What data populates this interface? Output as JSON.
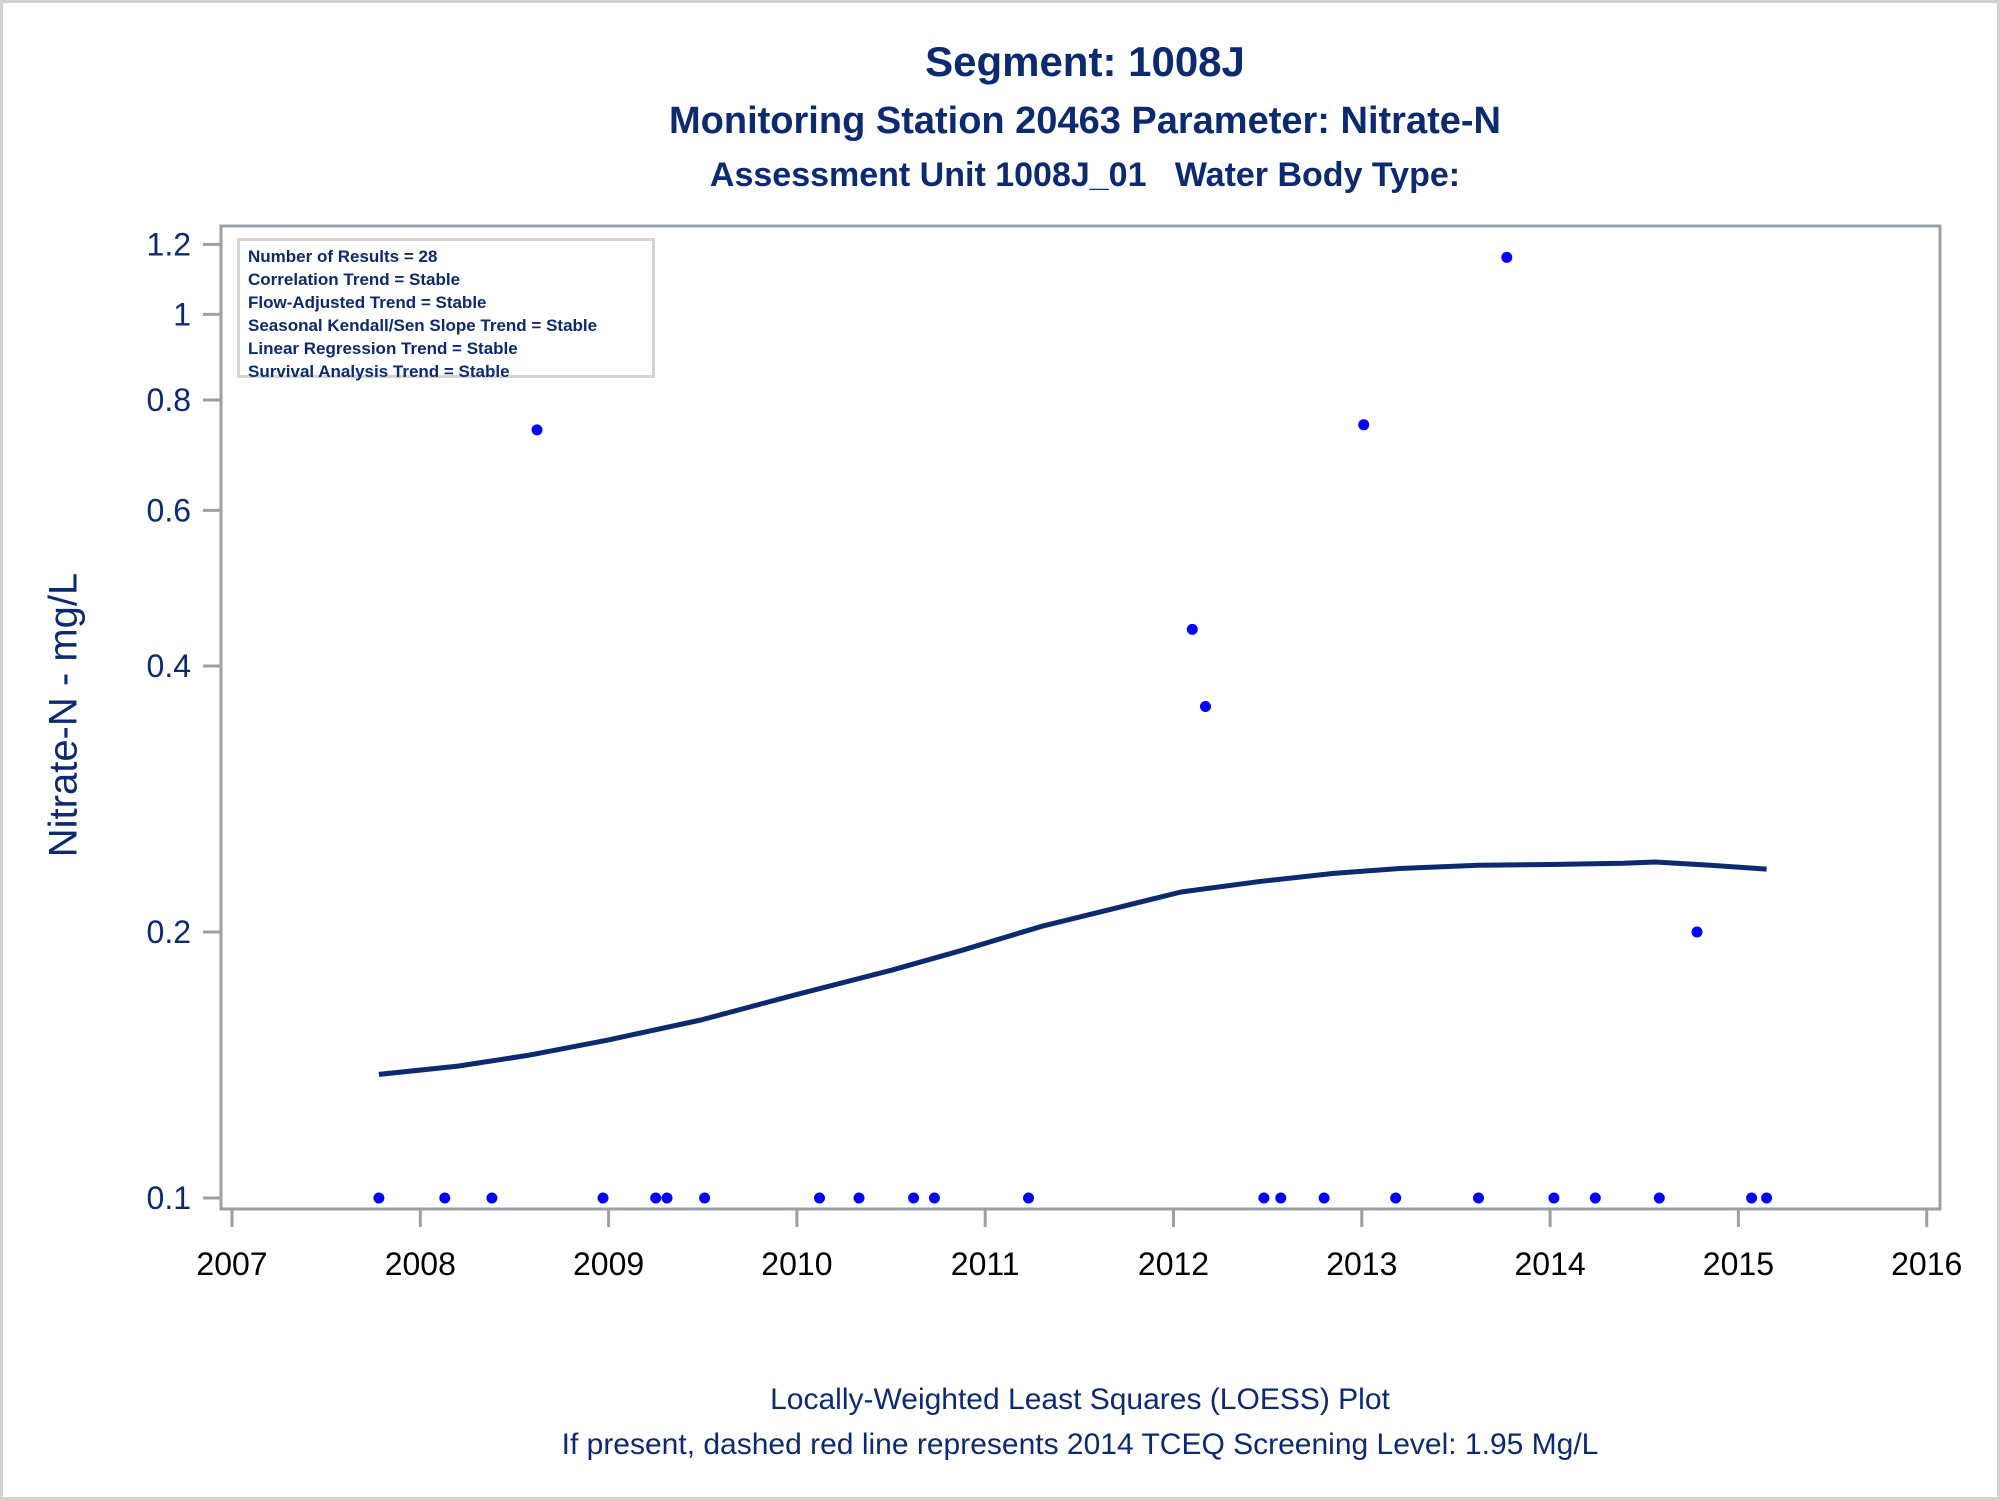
{
  "titles": {
    "main": "Segment: 1008J",
    "sub1": "Monitoring Station 20463 Parameter: Nitrate-N",
    "sub2": "Assessment Unit 1008J_01   Water Body Type:"
  },
  "stats_box": [
    "Number of Results = 28",
    "Correlation Trend = Stable",
    "Flow-Adjusted Trend = Stable",
    "Seasonal Kendall/Sen Slope Trend = Stable",
    "Linear Regression Trend = Stable",
    "Survival Analysis Trend = Stable"
  ],
  "footnotes": {
    "line1": "Locally-Weighted Least Squares (LOESS) Plot",
    "line2": "If present, dashed red line represents 2014 TCEQ Screening Level: 1.95 Mg/L"
  },
  "colors": {
    "text": "#0c2a70",
    "points": "#0000ff",
    "loess": "#0c2a70",
    "axis": "#9aa0a6",
    "border": "#d2d2d2"
  },
  "chart_data": {
    "type": "scatter",
    "title": "Segment: 1008J",
    "xlabel": "",
    "ylabel": "Nitrate-N - mg/L",
    "yscale": "log",
    "xlim": [
      2007,
      2016
    ],
    "ylim": [
      0.098,
      1.25
    ],
    "x_ticks": [
      "2007",
      "2008",
      "2009",
      "2010",
      "2011",
      "2012",
      "2013",
      "2014",
      "2015",
      "2016"
    ],
    "y_ticks": [
      "0.1",
      "0.2",
      "0.4",
      "0.6",
      "0.8",
      "1",
      "1.2"
    ],
    "grid": false,
    "series": [
      {
        "name": "Observations",
        "type": "scatter",
        "points": [
          {
            "x": 2007.78,
            "y": 0.1
          },
          {
            "x": 2008.13,
            "y": 0.1
          },
          {
            "x": 2008.38,
            "y": 0.1
          },
          {
            "x": 2008.62,
            "y": 0.74
          },
          {
            "x": 2008.97,
            "y": 0.1
          },
          {
            "x": 2009.25,
            "y": 0.1
          },
          {
            "x": 2009.31,
            "y": 0.1
          },
          {
            "x": 2009.51,
            "y": 0.1
          },
          {
            "x": 2010.12,
            "y": 0.1
          },
          {
            "x": 2010.33,
            "y": 0.1
          },
          {
            "x": 2010.62,
            "y": 0.1
          },
          {
            "x": 2010.73,
            "y": 0.1
          },
          {
            "x": 2011.23,
            "y": 0.1
          },
          {
            "x": 2012.1,
            "y": 0.44
          },
          {
            "x": 2012.17,
            "y": 0.36
          },
          {
            "x": 2012.48,
            "y": 0.1
          },
          {
            "x": 2012.57,
            "y": 0.1
          },
          {
            "x": 2012.8,
            "y": 0.1
          },
          {
            "x": 2013.01,
            "y": 0.75
          },
          {
            "x": 2013.18,
            "y": 0.1
          },
          {
            "x": 2013.62,
            "y": 0.1
          },
          {
            "x": 2013.77,
            "y": 1.16
          },
          {
            "x": 2014.02,
            "y": 0.1
          },
          {
            "x": 2014.24,
            "y": 0.1
          },
          {
            "x": 2014.58,
            "y": 0.1
          },
          {
            "x": 2014.78,
            "y": 0.2
          },
          {
            "x": 2015.07,
            "y": 0.1
          },
          {
            "x": 2015.15,
            "y": 0.1
          }
        ]
      },
      {
        "name": "LOESS fit",
        "type": "line",
        "points": [
          {
            "x": 2007.78,
            "y": 0.138
          },
          {
            "x": 2008.2,
            "y": 0.141
          },
          {
            "x": 2008.57,
            "y": 0.145
          },
          {
            "x": 2009.0,
            "y": 0.151
          },
          {
            "x": 2009.49,
            "y": 0.159
          },
          {
            "x": 2010.0,
            "y": 0.17
          },
          {
            "x": 2010.5,
            "y": 0.181
          },
          {
            "x": 2010.87,
            "y": 0.1905
          },
          {
            "x": 2011.3,
            "y": 0.203
          },
          {
            "x": 2011.7,
            "y": 0.213
          },
          {
            "x": 2012.04,
            "y": 0.222
          },
          {
            "x": 2012.45,
            "y": 0.228
          },
          {
            "x": 2012.85,
            "y": 0.233
          },
          {
            "x": 2013.2,
            "y": 0.236
          },
          {
            "x": 2013.62,
            "y": 0.238
          },
          {
            "x": 2014.0,
            "y": 0.2385
          },
          {
            "x": 2014.39,
            "y": 0.2392
          },
          {
            "x": 2014.56,
            "y": 0.24
          },
          {
            "x": 2014.85,
            "y": 0.238
          },
          {
            "x": 2015.15,
            "y": 0.2356
          }
        ]
      }
    ]
  }
}
